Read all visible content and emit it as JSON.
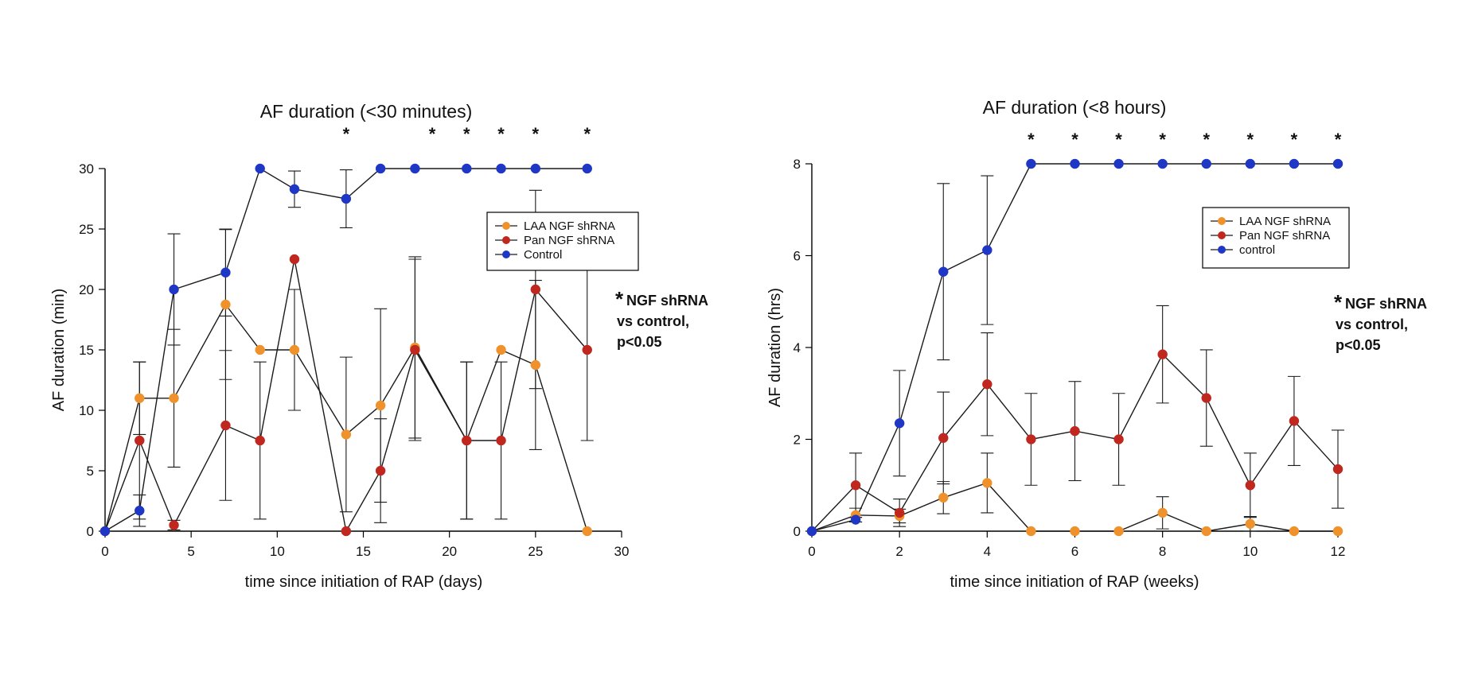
{
  "chart_data": [
    {
      "type": "line",
      "title": "AF duration (<30 minutes)",
      "xlabel": "time since initiation of RAP (days)",
      "ylabel": "AF duration (min)",
      "xlim": [
        0,
        30
      ],
      "ylim": [
        0,
        30
      ],
      "xticks": [
        0,
        5,
        10,
        15,
        20,
        25,
        30
      ],
      "yticks": [
        0,
        5,
        10,
        15,
        20,
        25,
        30
      ],
      "grid": false,
      "legend_position": "top-right",
      "significance_x": [
        14,
        19,
        21,
        23,
        25,
        28
      ],
      "significance_mark": "*",
      "annotation": {
        "star": "*",
        "line1": "NGF shRNA",
        "line2": "vs control,",
        "line3": "p<0.05"
      },
      "series": [
        {
          "name": "LAA NGF shRNA",
          "color": "#f0922b",
          "x": [
            0,
            2,
            4,
            7,
            9,
            11,
            14,
            16,
            18,
            21,
            23,
            25,
            28
          ],
          "values": [
            0,
            11,
            11,
            18.75,
            15,
            15,
            8,
            10.4,
            15.2,
            7.5,
            15,
            13.75,
            0
          ],
          "err": [
            0,
            3,
            5.7,
            6.2,
            0,
            5,
            6.4,
            8,
            7.5,
            6.5,
            0,
            7,
            0
          ]
        },
        {
          "name": "Pan NGF shRNA",
          "color": "#c0271e",
          "x": [
            0,
            2,
            4,
            7,
            9,
            11,
            14,
            16,
            18,
            21,
            23,
            25,
            28
          ],
          "values": [
            0,
            7.5,
            0.5,
            8.75,
            7.5,
            22.5,
            0,
            5,
            15,
            7.5,
            7.5,
            20,
            15
          ],
          "err": [
            0,
            6.5,
            0.4,
            6.2,
            6.5,
            0,
            0,
            4.3,
            7.5,
            6.5,
            6.5,
            8.2,
            7.5
          ]
        },
        {
          "name": "Control",
          "color": "#1f37c5",
          "x": [
            0,
            2,
            4,
            7,
            9,
            11,
            14,
            16,
            18,
            21,
            23,
            25,
            28
          ],
          "values": [
            0,
            1.7,
            20,
            21.4,
            30,
            28.3,
            27.5,
            30,
            30,
            30,
            30,
            30,
            30
          ],
          "err": [
            0,
            1.3,
            4.6,
            3.6,
            0,
            1.5,
            2.4,
            0,
            0,
            0,
            0,
            0,
            0
          ]
        }
      ]
    },
    {
      "type": "line",
      "title": "AF duration (<8 hours)",
      "xlabel": "time since initiation of RAP (weeks)",
      "ylabel": "AF duration (hrs)",
      "xlim": [
        0,
        12
      ],
      "ylim": [
        0,
        8
      ],
      "xticks": [
        0,
        2,
        4,
        6,
        8,
        10,
        12
      ],
      "yticks": [
        0,
        2,
        4,
        6,
        8
      ],
      "grid": false,
      "legend_position": "top-right",
      "significance_x": [
        5,
        6,
        7,
        8,
        9,
        10,
        11,
        12
      ],
      "significance_mark": "*",
      "annotation": {
        "star": "*",
        "line1": "NGF shRNA",
        "line2": "vs control,",
        "line3": "p<0.05"
      },
      "series": [
        {
          "name": "LAA NGF shRNA",
          "color": "#f0922b",
          "x": [
            0,
            1,
            2,
            3,
            4,
            5,
            6,
            7,
            8,
            9,
            10,
            11,
            12
          ],
          "values": [
            0,
            0.35,
            0.33,
            0.73,
            1.05,
            0,
            0,
            0,
            0.4,
            0,
            0.16,
            0,
            0
          ],
          "err": [
            0,
            0.15,
            0.15,
            0.35,
            0.65,
            0,
            0,
            0,
            0.35,
            0,
            0.16,
            0,
            0
          ]
        },
        {
          "name": "Pan NGF shRNA",
          "color": "#c0271e",
          "x": [
            0,
            1,
            2,
            3,
            4,
            5,
            6,
            7,
            8,
            9,
            10,
            11,
            12
          ],
          "values": [
            0,
            1,
            0.4,
            2.03,
            3.2,
            2,
            2.18,
            2,
            3.85,
            2.9,
            1,
            2.4,
            1.35
          ],
          "err": [
            0,
            0.7,
            0.3,
            1,
            1.12,
            1,
            1.08,
            1,
            1.06,
            1.05,
            0.7,
            0.97,
            0.85
          ]
        },
        {
          "name": "control",
          "color": "#1f37c5",
          "x": [
            0,
            1,
            2,
            3,
            4,
            5,
            6,
            7,
            8,
            9,
            10,
            11,
            12
          ],
          "values": [
            0,
            0.25,
            2.35,
            5.65,
            6.12,
            8,
            8,
            8,
            8,
            8,
            8,
            8,
            8
          ],
          "err": [
            0,
            0.05,
            1.15,
            1.92,
            1.62,
            0,
            0,
            0,
            0,
            0,
            0,
            0,
            0
          ]
        }
      ]
    }
  ]
}
